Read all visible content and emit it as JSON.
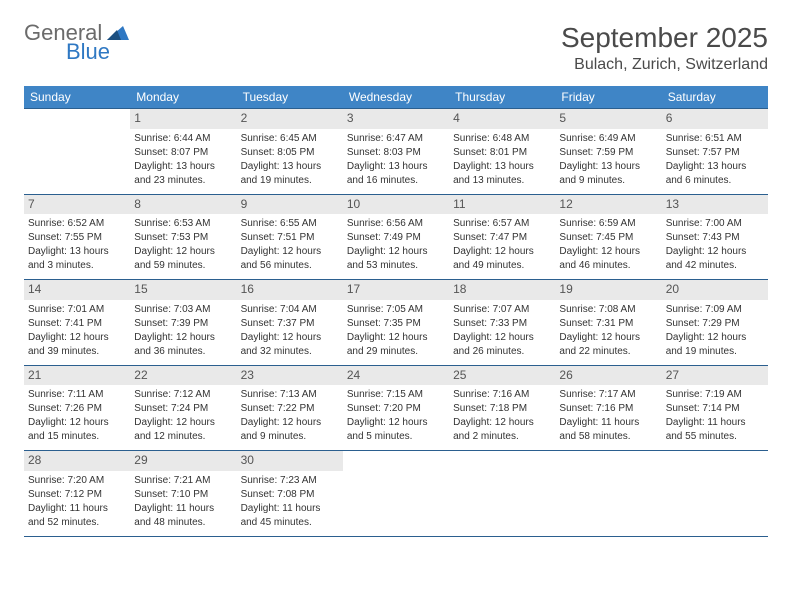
{
  "brand": {
    "line1": "General",
    "line2": "Blue"
  },
  "title": "September 2025",
  "location": "Bulach, Zurich, Switzerland",
  "header_bg": "#3f85c6",
  "rule_color": "#2b5f8f",
  "daynum_bg": "#e9e9e9",
  "weekdays": [
    "Sunday",
    "Monday",
    "Tuesday",
    "Wednesday",
    "Thursday",
    "Friday",
    "Saturday"
  ],
  "weeks": [
    [
      null,
      {
        "n": "1",
        "sr": "Sunrise: 6:44 AM",
        "ss": "Sunset: 8:07 PM",
        "d1": "Daylight: 13 hours",
        "d2": "and 23 minutes."
      },
      {
        "n": "2",
        "sr": "Sunrise: 6:45 AM",
        "ss": "Sunset: 8:05 PM",
        "d1": "Daylight: 13 hours",
        "d2": "and 19 minutes."
      },
      {
        "n": "3",
        "sr": "Sunrise: 6:47 AM",
        "ss": "Sunset: 8:03 PM",
        "d1": "Daylight: 13 hours",
        "d2": "and 16 minutes."
      },
      {
        "n": "4",
        "sr": "Sunrise: 6:48 AM",
        "ss": "Sunset: 8:01 PM",
        "d1": "Daylight: 13 hours",
        "d2": "and 13 minutes."
      },
      {
        "n": "5",
        "sr": "Sunrise: 6:49 AM",
        "ss": "Sunset: 7:59 PM",
        "d1": "Daylight: 13 hours",
        "d2": "and 9 minutes."
      },
      {
        "n": "6",
        "sr": "Sunrise: 6:51 AM",
        "ss": "Sunset: 7:57 PM",
        "d1": "Daylight: 13 hours",
        "d2": "and 6 minutes."
      }
    ],
    [
      {
        "n": "7",
        "sr": "Sunrise: 6:52 AM",
        "ss": "Sunset: 7:55 PM",
        "d1": "Daylight: 13 hours",
        "d2": "and 3 minutes."
      },
      {
        "n": "8",
        "sr": "Sunrise: 6:53 AM",
        "ss": "Sunset: 7:53 PM",
        "d1": "Daylight: 12 hours",
        "d2": "and 59 minutes."
      },
      {
        "n": "9",
        "sr": "Sunrise: 6:55 AM",
        "ss": "Sunset: 7:51 PM",
        "d1": "Daylight: 12 hours",
        "d2": "and 56 minutes."
      },
      {
        "n": "10",
        "sr": "Sunrise: 6:56 AM",
        "ss": "Sunset: 7:49 PM",
        "d1": "Daylight: 12 hours",
        "d2": "and 53 minutes."
      },
      {
        "n": "11",
        "sr": "Sunrise: 6:57 AM",
        "ss": "Sunset: 7:47 PM",
        "d1": "Daylight: 12 hours",
        "d2": "and 49 minutes."
      },
      {
        "n": "12",
        "sr": "Sunrise: 6:59 AM",
        "ss": "Sunset: 7:45 PM",
        "d1": "Daylight: 12 hours",
        "d2": "and 46 minutes."
      },
      {
        "n": "13",
        "sr": "Sunrise: 7:00 AM",
        "ss": "Sunset: 7:43 PM",
        "d1": "Daylight: 12 hours",
        "d2": "and 42 minutes."
      }
    ],
    [
      {
        "n": "14",
        "sr": "Sunrise: 7:01 AM",
        "ss": "Sunset: 7:41 PM",
        "d1": "Daylight: 12 hours",
        "d2": "and 39 minutes."
      },
      {
        "n": "15",
        "sr": "Sunrise: 7:03 AM",
        "ss": "Sunset: 7:39 PM",
        "d1": "Daylight: 12 hours",
        "d2": "and 36 minutes."
      },
      {
        "n": "16",
        "sr": "Sunrise: 7:04 AM",
        "ss": "Sunset: 7:37 PM",
        "d1": "Daylight: 12 hours",
        "d2": "and 32 minutes."
      },
      {
        "n": "17",
        "sr": "Sunrise: 7:05 AM",
        "ss": "Sunset: 7:35 PM",
        "d1": "Daylight: 12 hours",
        "d2": "and 29 minutes."
      },
      {
        "n": "18",
        "sr": "Sunrise: 7:07 AM",
        "ss": "Sunset: 7:33 PM",
        "d1": "Daylight: 12 hours",
        "d2": "and 26 minutes."
      },
      {
        "n": "19",
        "sr": "Sunrise: 7:08 AM",
        "ss": "Sunset: 7:31 PM",
        "d1": "Daylight: 12 hours",
        "d2": "and 22 minutes."
      },
      {
        "n": "20",
        "sr": "Sunrise: 7:09 AM",
        "ss": "Sunset: 7:29 PM",
        "d1": "Daylight: 12 hours",
        "d2": "and 19 minutes."
      }
    ],
    [
      {
        "n": "21",
        "sr": "Sunrise: 7:11 AM",
        "ss": "Sunset: 7:26 PM",
        "d1": "Daylight: 12 hours",
        "d2": "and 15 minutes."
      },
      {
        "n": "22",
        "sr": "Sunrise: 7:12 AM",
        "ss": "Sunset: 7:24 PM",
        "d1": "Daylight: 12 hours",
        "d2": "and 12 minutes."
      },
      {
        "n": "23",
        "sr": "Sunrise: 7:13 AM",
        "ss": "Sunset: 7:22 PM",
        "d1": "Daylight: 12 hours",
        "d2": "and 9 minutes."
      },
      {
        "n": "24",
        "sr": "Sunrise: 7:15 AM",
        "ss": "Sunset: 7:20 PM",
        "d1": "Daylight: 12 hours",
        "d2": "and 5 minutes."
      },
      {
        "n": "25",
        "sr": "Sunrise: 7:16 AM",
        "ss": "Sunset: 7:18 PM",
        "d1": "Daylight: 12 hours",
        "d2": "and 2 minutes."
      },
      {
        "n": "26",
        "sr": "Sunrise: 7:17 AM",
        "ss": "Sunset: 7:16 PM",
        "d1": "Daylight: 11 hours",
        "d2": "and 58 minutes."
      },
      {
        "n": "27",
        "sr": "Sunrise: 7:19 AM",
        "ss": "Sunset: 7:14 PM",
        "d1": "Daylight: 11 hours",
        "d2": "and 55 minutes."
      }
    ],
    [
      {
        "n": "28",
        "sr": "Sunrise: 7:20 AM",
        "ss": "Sunset: 7:12 PM",
        "d1": "Daylight: 11 hours",
        "d2": "and 52 minutes."
      },
      {
        "n": "29",
        "sr": "Sunrise: 7:21 AM",
        "ss": "Sunset: 7:10 PM",
        "d1": "Daylight: 11 hours",
        "d2": "and 48 minutes."
      },
      {
        "n": "30",
        "sr": "Sunrise: 7:23 AM",
        "ss": "Sunset: 7:08 PM",
        "d1": "Daylight: 11 hours",
        "d2": "and 45 minutes."
      },
      null,
      null,
      null,
      null
    ]
  ]
}
